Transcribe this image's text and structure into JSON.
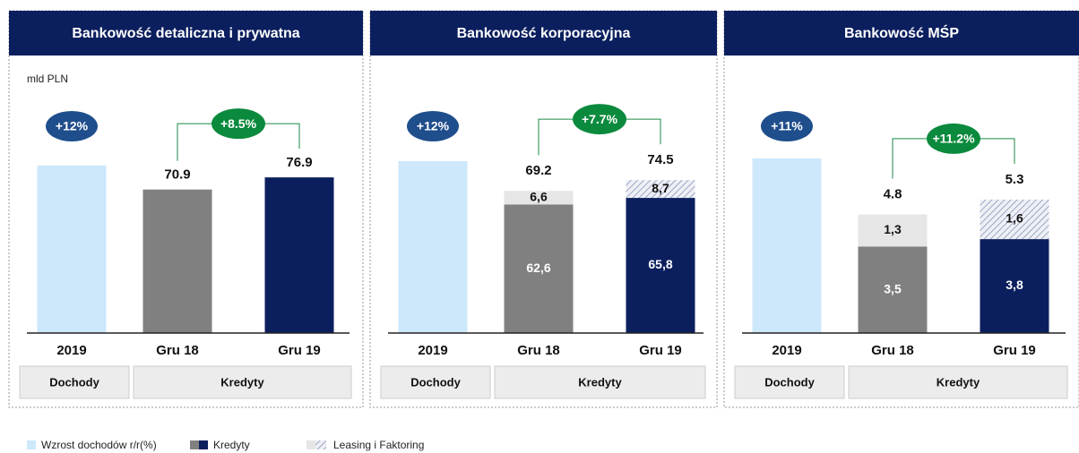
{
  "legend": [
    "Wzrost dochodów r/r(%)",
    "Kredyty",
    "Leasing i Faktoring"
  ],
  "chart_data": [
    {
      "type": "bar",
      "title": "Bankowość detaliczna i prywatna",
      "unit": "mld PLN",
      "categories": [
        "2019",
        "Gru 18",
        "Gru 19"
      ],
      "groups": [
        "Dochody",
        "Kredyty"
      ],
      "income": {
        "value": 12,
        "label": "+12%"
      },
      "income_color": "#cde7fb",
      "growth": {
        "value": 8.5,
        "label": "+8.5%"
      },
      "ylim": [
        0,
        138
      ],
      "y2lim": [
        0,
        20
      ],
      "series": [
        {
          "values": [
            null,
            70.9,
            76.9
          ],
          "colors": [
            null,
            "#808080",
            "#0b1f5e"
          ]
        }
      ]
    },
    {
      "type": "bar",
      "title": "Bankowość korporacyjna",
      "categories": [
        "2019",
        "Gru 18",
        "Gru 19"
      ],
      "groups": [
        "Dochody",
        "Kredyty"
      ],
      "income": {
        "value": 12,
        "label": "+12%"
      },
      "income_color": "#cde7fb",
      "growth": {
        "value": 7.7,
        "label": "+7.7%"
      },
      "ylim": [
        0,
        136
      ],
      "y2lim": [
        0,
        19.5
      ],
      "totals": [
        null,
        69.2,
        74.5
      ],
      "series": [
        {
          "values": [
            null,
            62.6,
            65.8
          ],
          "value_labels": [
            null,
            "62,6",
            "65,8"
          ],
          "colors": [
            null,
            "#808080",
            "#0b1f5e"
          ]
        },
        {
          "values": [
            null,
            6.6,
            8.7
          ],
          "value_labels": [
            null,
            "6,6",
            "8,7"
          ],
          "colors": [
            null,
            "#e6e6e6",
            "hatch"
          ]
        }
      ]
    },
    {
      "type": "bar",
      "title": "Bankowość MŚP",
      "categories": [
        "2019",
        "Gru 18",
        "Gru 19"
      ],
      "groups": [
        "Dochody",
        "Kredyty"
      ],
      "income": {
        "value": 11,
        "label": "+11%"
      },
      "income_color": "#cde7fb",
      "growth": {
        "value": 11.2,
        "label": "+11.2%"
      },
      "ylim": [
        0,
        11.3
      ],
      "y2lim": [
        0,
        17.6
      ],
      "totals": [
        null,
        4.8,
        5.3
      ],
      "series": [
        {
          "values": [
            null,
            3.5,
            3.8
          ],
          "value_labels": [
            null,
            "3,5",
            "3,8"
          ],
          "colors": [
            null,
            "#808080",
            "#0b1f5e"
          ]
        },
        {
          "values": [
            null,
            1.3,
            1.6
          ],
          "value_labels": [
            null,
            "1,3",
            "1,6"
          ],
          "colors": [
            null,
            "#e6e6e6",
            "hatch"
          ]
        }
      ]
    }
  ]
}
